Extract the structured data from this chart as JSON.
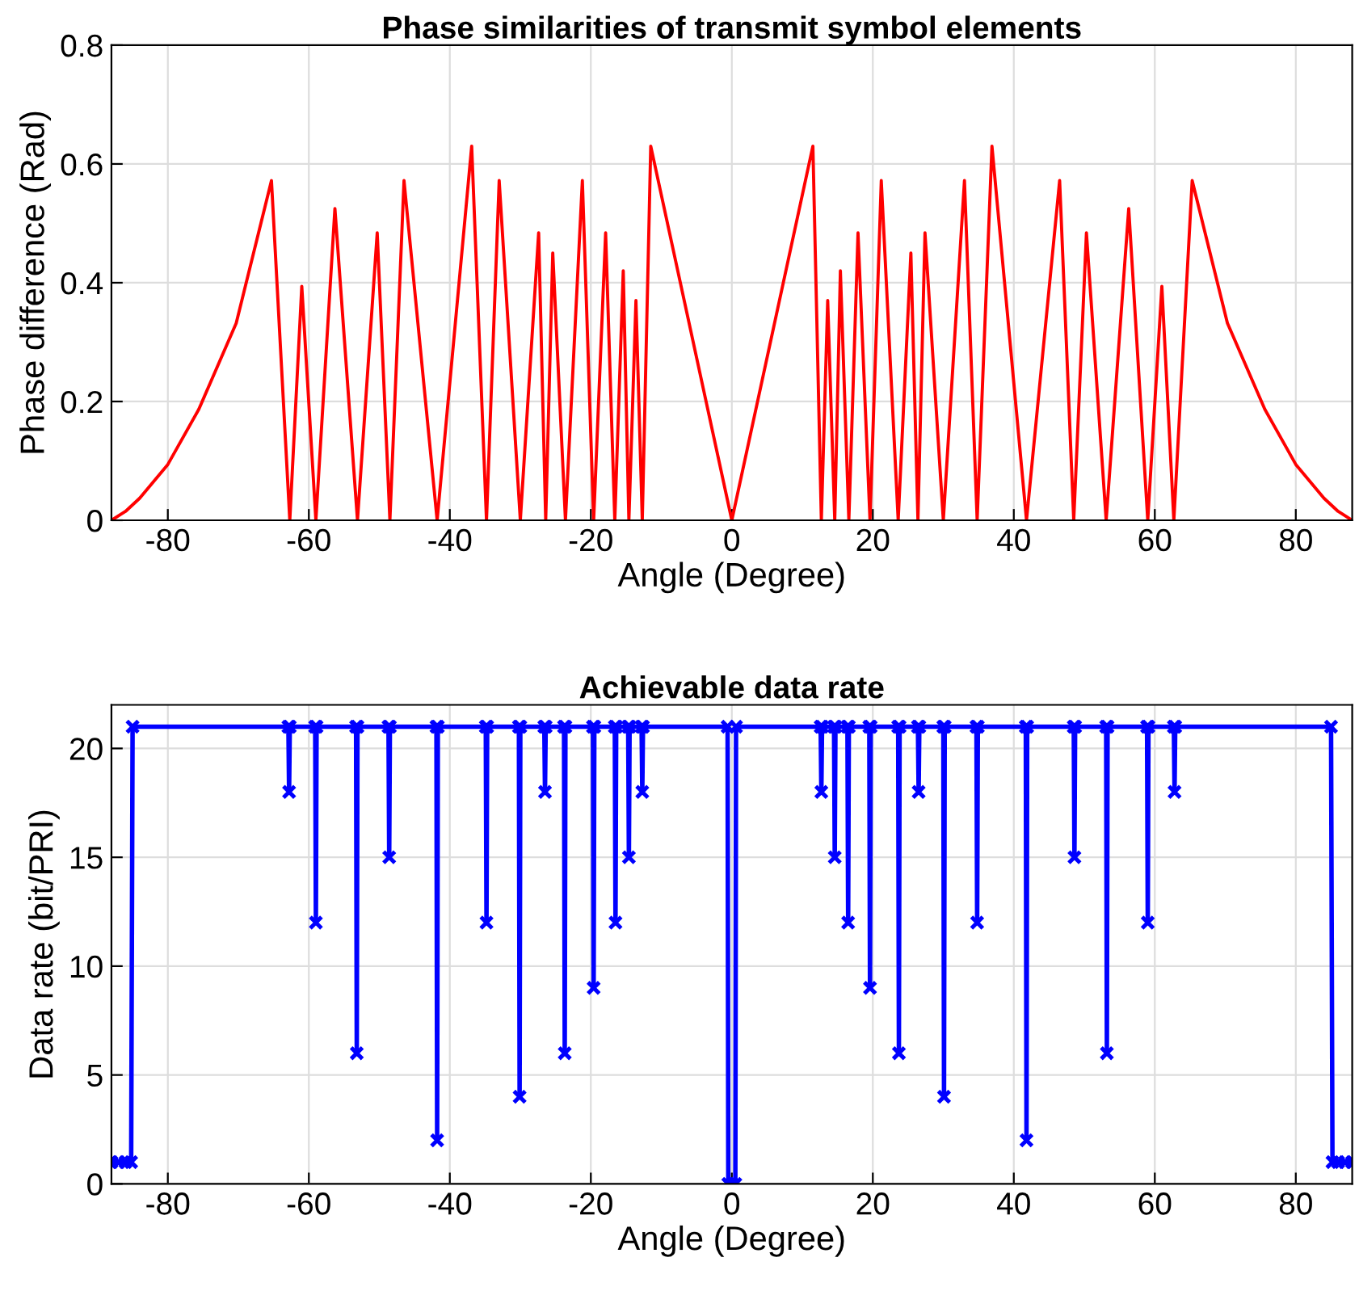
{
  "chart_data": [
    {
      "type": "line",
      "title": "Phase similarities of transmit symbol elements",
      "xlabel": "Angle (Degree)",
      "ylabel": "Phase difference (Rad)",
      "xlim": [
        -88,
        88
      ],
      "xticks": [
        -80,
        -60,
        -40,
        -20,
        0,
        20,
        40,
        60,
        80
      ],
      "ylim": [
        0,
        0.8
      ],
      "yticks": [
        0,
        0.2,
        0.4,
        0.6,
        0.8
      ],
      "grid": true,
      "marker": "none",
      "line_style": "solid",
      "series": [
        {
          "color": "#ff0000",
          "x": [
            -88,
            -86,
            -84,
            -80,
            -75.6,
            -70.3,
            -65.3,
            -62.7,
            -61,
            -59,
            -56.3,
            -53.1,
            -50.3,
            -48.5,
            -46.5,
            -41.8,
            -36.9,
            -34.8,
            -33,
            -30,
            -27.4,
            -26.4,
            -25.4,
            -23.6,
            -21.2,
            -19.6,
            -17.9,
            -16.6,
            -15.4,
            -14.6,
            -13.6,
            -12.7,
            -11.5,
            0,
            11.5,
            12.7,
            13.6,
            14.6,
            15.4,
            16.6,
            17.9,
            19.6,
            21.2,
            23.6,
            25.4,
            26.4,
            27.4,
            30,
            33,
            34.8,
            36.9,
            41.8,
            46.5,
            48.5,
            50.3,
            53.1,
            56.3,
            59,
            61,
            62.7,
            65.3,
            70.3,
            75.6,
            80,
            84,
            86,
            88
          ],
          "values": [
            0,
            0.015,
            0.037,
            0.094,
            0.187,
            0.332,
            0.572,
            0,
            0.394,
            0,
            0.525,
            0,
            0.484,
            0,
            0.572,
            0,
            0.63,
            0,
            0.572,
            0,
            0.484,
            0,
            0.45,
            0,
            0.572,
            0,
            0.484,
            0,
            0.42,
            0,
            0.37,
            0,
            0.63,
            0,
            0.63,
            0,
            0.37,
            0,
            0.42,
            0,
            0.484,
            0,
            0.572,
            0,
            0.45,
            0,
            0.484,
            0,
            0.572,
            0,
            0.63,
            0,
            0.572,
            0,
            0.484,
            0,
            0.525,
            0,
            0.394,
            0,
            0.572,
            0.332,
            0.187,
            0.094,
            0.037,
            0.015,
            0
          ]
        }
      ]
    },
    {
      "type": "line",
      "title": "Achievable data rate",
      "xlabel": "Angle (Degree)",
      "ylabel": "Data rate (bit/PRI)",
      "xlim": [
        -88,
        88
      ],
      "xticks": [
        -80,
        -60,
        -40,
        -20,
        0,
        20,
        40,
        60,
        80
      ],
      "ylim": [
        0,
        22
      ],
      "yticks": [
        0,
        5,
        10,
        15,
        20
      ],
      "grid": true,
      "marker": "cross",
      "line_style": "solid",
      "series": [
        {
          "color": "#0000ff",
          "x": [
            -88,
            -87,
            -86,
            -85.2,
            -85,
            -62.9,
            -62.8,
            -62.7,
            -59.1,
            -59,
            -58.9,
            -53.3,
            -53.2,
            -53.1,
            -48.7,
            -48.6,
            -48.5,
            -41.9,
            -41.8,
            -41.7,
            -34.9,
            -34.8,
            -34.7,
            -30.2,
            -30.1,
            -30,
            -26.6,
            -26.5,
            -26.4,
            -23.8,
            -23.7,
            -23.6,
            -19.7,
            -19.6,
            -19.5,
            -16.6,
            -16.5,
            -16.4,
            -14.7,
            -14.6,
            -14.5,
            -12.8,
            -12.7,
            -12.6,
            -0.6,
            -0.5,
            0,
            0.5,
            0.6,
            12.6,
            12.7,
            12.8,
            14.5,
            14.6,
            14.7,
            16.4,
            16.5,
            16.6,
            19.5,
            19.6,
            19.7,
            23.6,
            23.7,
            23.8,
            26.4,
            26.5,
            26.6,
            30,
            30.1,
            30.2,
            34.7,
            34.8,
            34.9,
            41.7,
            41.8,
            41.9,
            48.5,
            48.6,
            48.7,
            53.1,
            53.2,
            53.3,
            58.9,
            59,
            59.1,
            62.7,
            62.8,
            62.9,
            85,
            85.2,
            86,
            87,
            88
          ],
          "values": [
            1,
            1,
            1,
            1,
            21,
            21,
            18,
            21,
            21,
            12,
            21,
            21,
            6,
            21,
            21,
            15,
            21,
            21,
            2,
            21,
            21,
            12,
            21,
            21,
            4,
            21,
            21,
            18,
            21,
            21,
            6,
            21,
            21,
            9,
            21,
            21,
            12,
            21,
            21,
            15,
            21,
            21,
            18,
            21,
            21,
            0,
            0,
            0,
            21,
            21,
            18,
            21,
            21,
            15,
            21,
            21,
            12,
            21,
            21,
            9,
            21,
            21,
            6,
            21,
            21,
            18,
            21,
            21,
            4,
            21,
            21,
            12,
            21,
            21,
            2,
            21,
            21,
            15,
            21,
            21,
            6,
            21,
            21,
            12,
            21,
            21,
            18,
            21,
            21,
            1,
            1,
            1,
            1
          ]
        }
      ]
    }
  ]
}
